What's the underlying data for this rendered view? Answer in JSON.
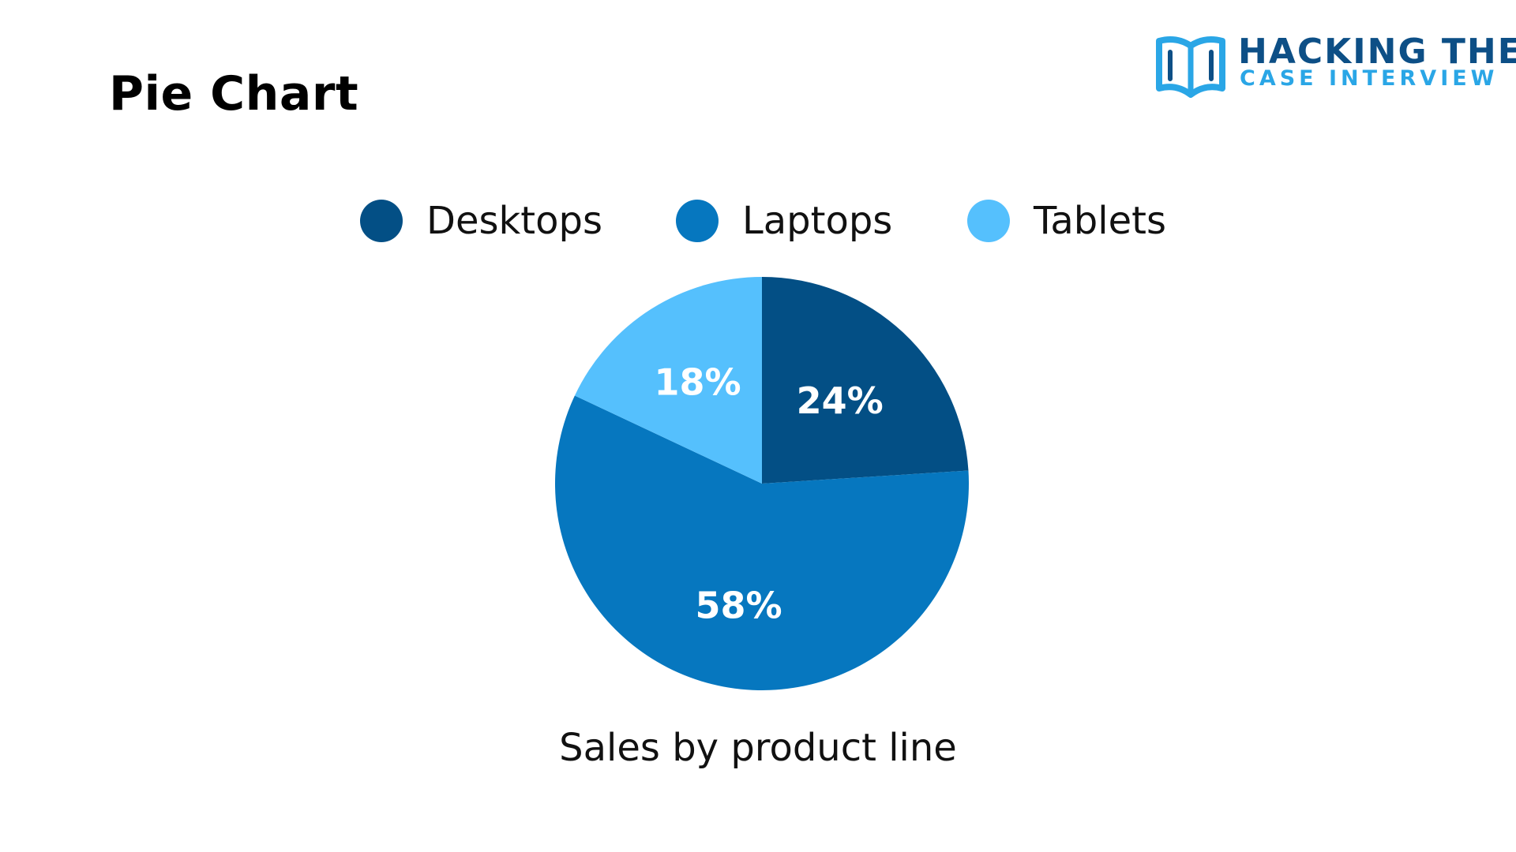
{
  "header": {
    "title": "Pie Chart"
  },
  "logo": {
    "line1": "HACKING THE",
    "line2": "CASE INTERVIEW",
    "icon": "open-book-icon"
  },
  "chart_data": {
    "type": "pie",
    "title": "",
    "caption": "Sales by product line",
    "legend_position": "top",
    "categories": [
      "Desktops",
      "Laptops",
      "Tablets"
    ],
    "values": [
      24,
      58,
      18
    ],
    "value_labels": [
      "24%",
      "58%",
      "18%"
    ],
    "colors": [
      "#034f85",
      "#0677bf",
      "#55c0fd"
    ],
    "start_angle": "12 o'clock",
    "direction": "clockwise"
  }
}
